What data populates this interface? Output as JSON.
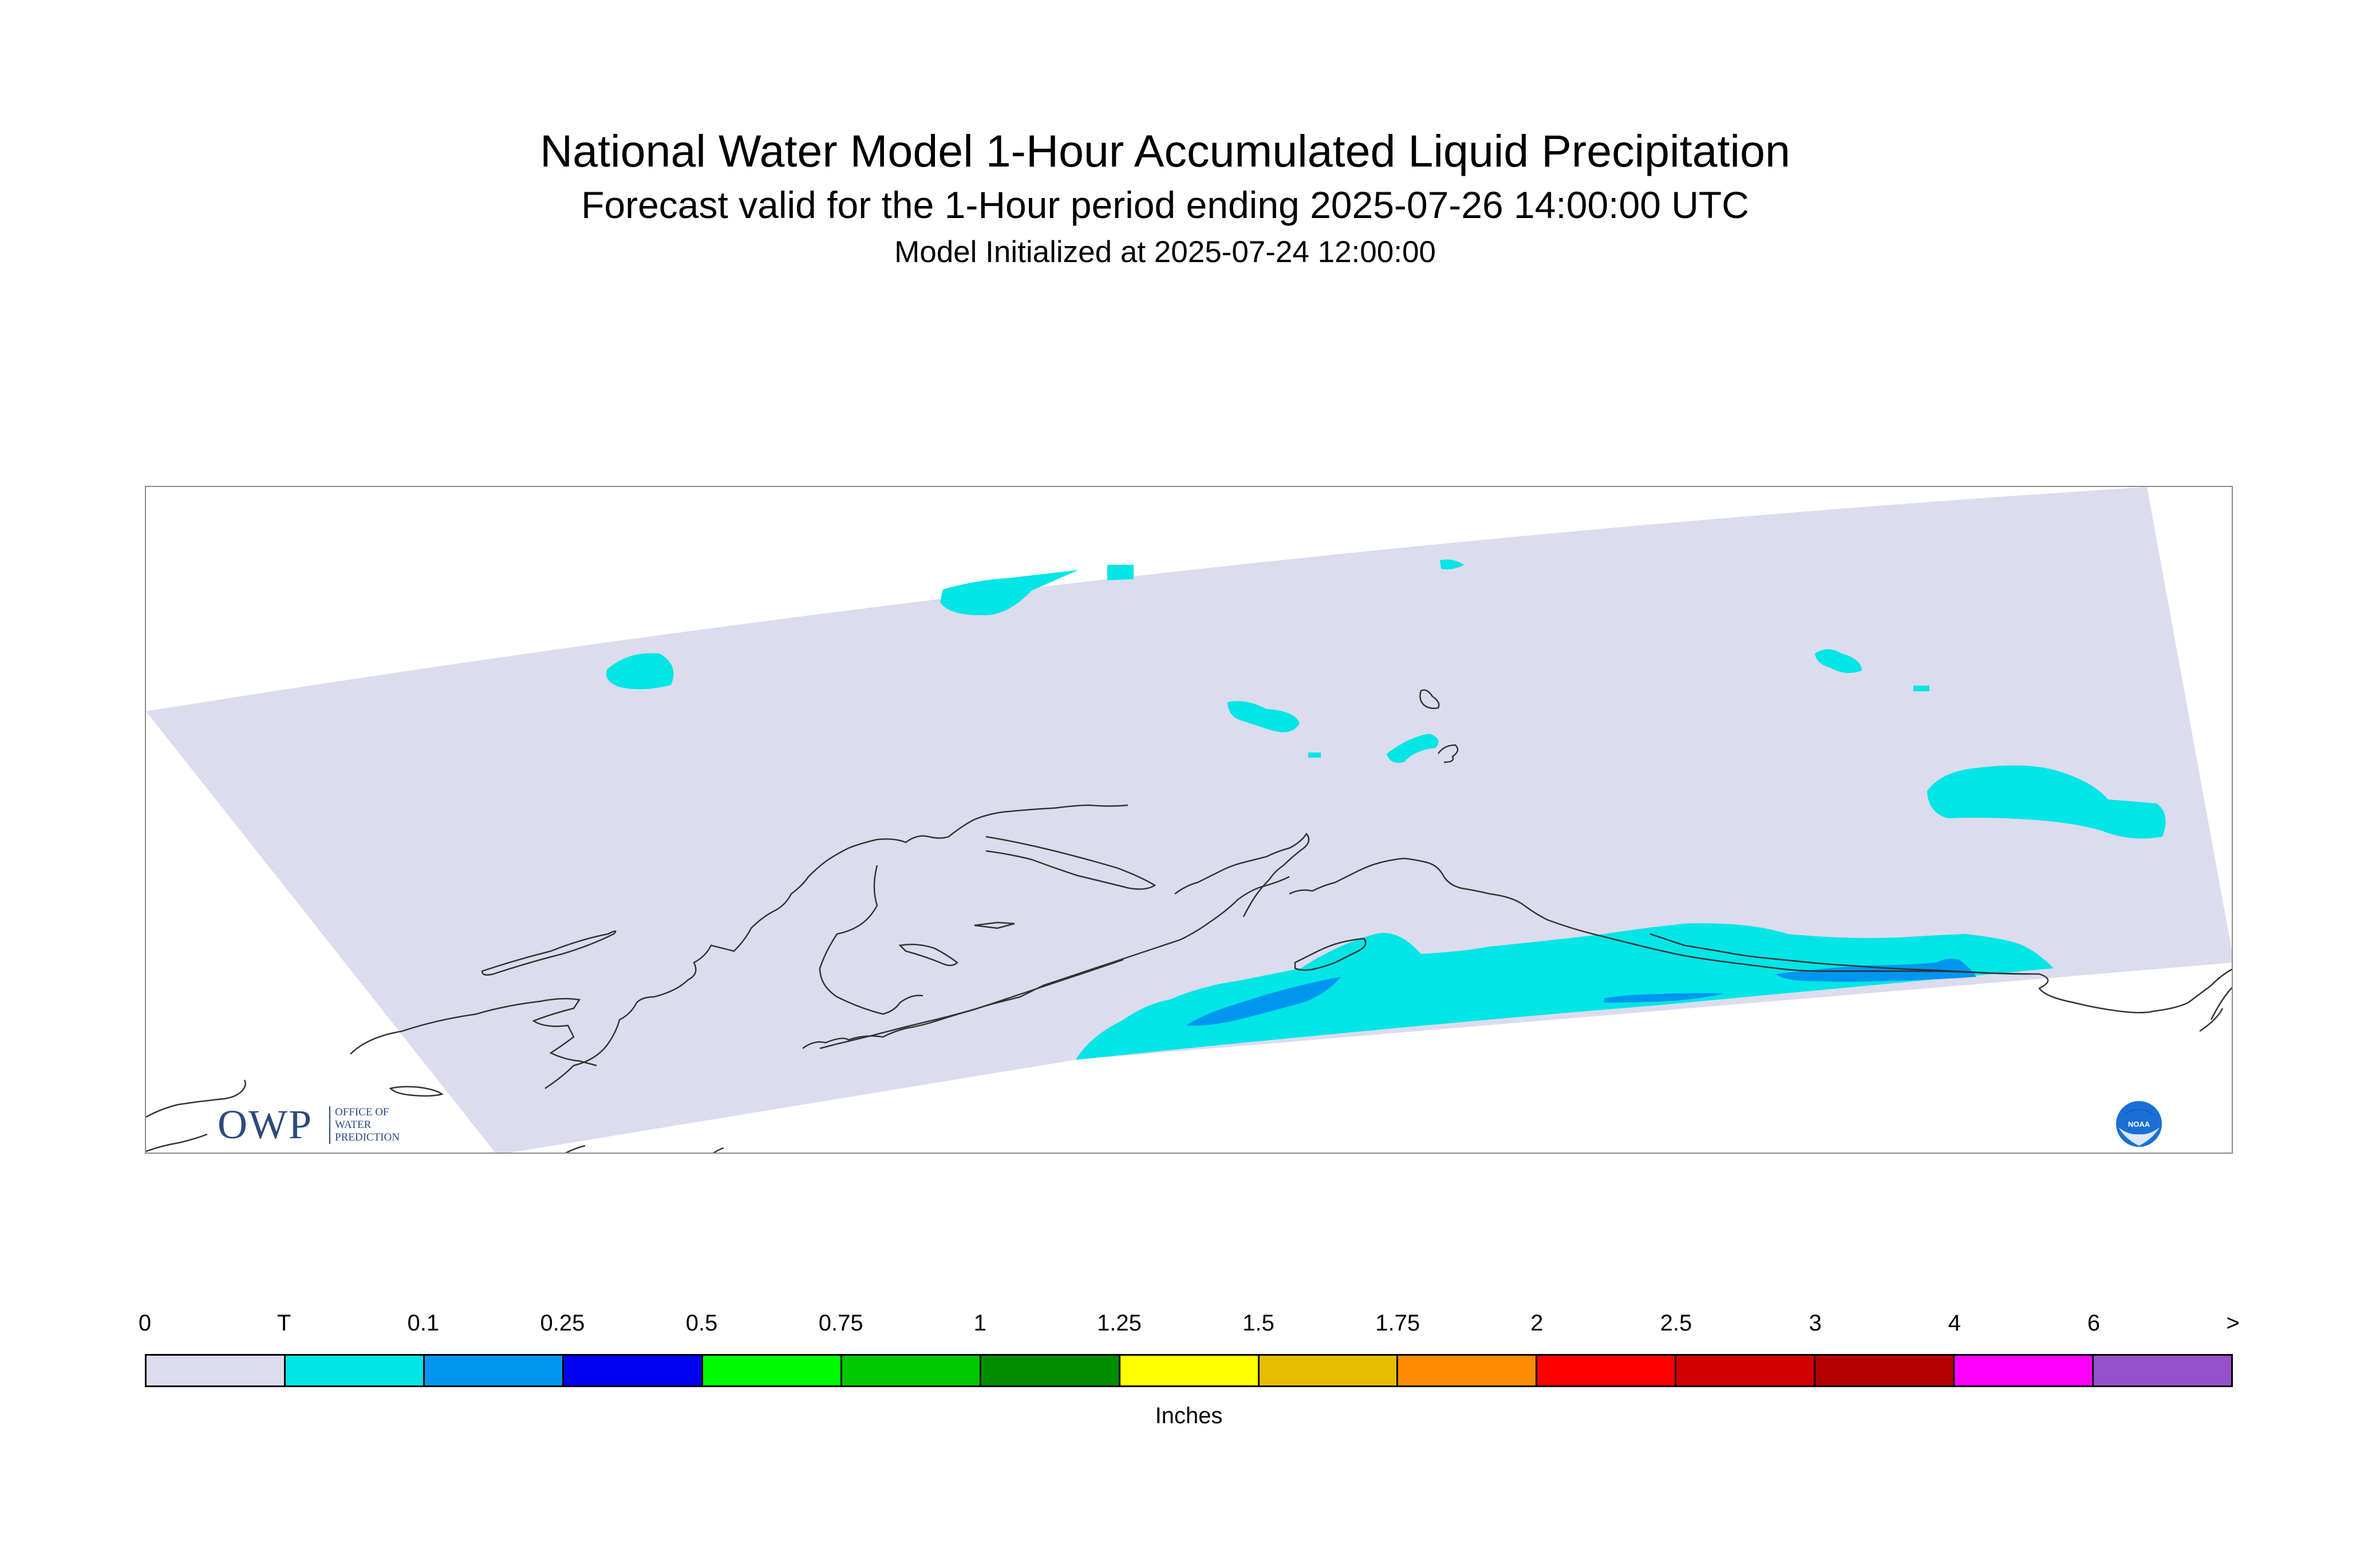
{
  "titles": {
    "main": "National Water Model 1-Hour Accumulated Liquid Precipitation",
    "sub": "Forecast valid for the 1-Hour period ending 2025-07-26 14:00:00 UTC",
    "init": "Model Initialized at 2025-07-24 12:00:00"
  },
  "map": {
    "domain_color": "#dcdcee",
    "coastline_color": "#333333",
    "precip_areas": [
      {
        "name": "area-north-1",
        "amount_class": "T"
      },
      {
        "name": "area-north-2",
        "amount_class": "T"
      },
      {
        "name": "area-west",
        "amount_class": "T"
      },
      {
        "name": "area-central-1",
        "amount_class": "T"
      },
      {
        "name": "area-central-2",
        "amount_class": "T"
      },
      {
        "name": "area-northeast",
        "amount_class": "T"
      },
      {
        "name": "area-east",
        "amount_class": "T"
      },
      {
        "name": "area-south-band",
        "amount_class": "T"
      },
      {
        "name": "area-south-core-1",
        "amount_class": "0.1"
      },
      {
        "name": "area-south-core-2",
        "amount_class": "0.1"
      },
      {
        "name": "area-south-core-3",
        "amount_class": "0.1"
      }
    ]
  },
  "logos": {
    "owp_big": "OWP",
    "owp_small": [
      "OFFICE OF",
      "WATER",
      "PREDICTION"
    ],
    "noaa": "NOAA"
  },
  "legend": {
    "labels": [
      "0",
      "T",
      "0.1",
      "0.25",
      "0.5",
      "0.75",
      "1",
      "1.25",
      "1.5",
      "1.75",
      "2",
      "2.5",
      "3",
      "4",
      "6",
      ">"
    ],
    "colors": [
      "#dcdcee",
      "#00e5e5",
      "#0096f0",
      "#0000f0",
      "#00fa00",
      "#00c800",
      "#008c00",
      "#ffff00",
      "#e5be00",
      "#ff8c00",
      "#ff0000",
      "#d20000",
      "#b40000",
      "#ff00ff",
      "#9650c8"
    ],
    "units": "Inches"
  }
}
